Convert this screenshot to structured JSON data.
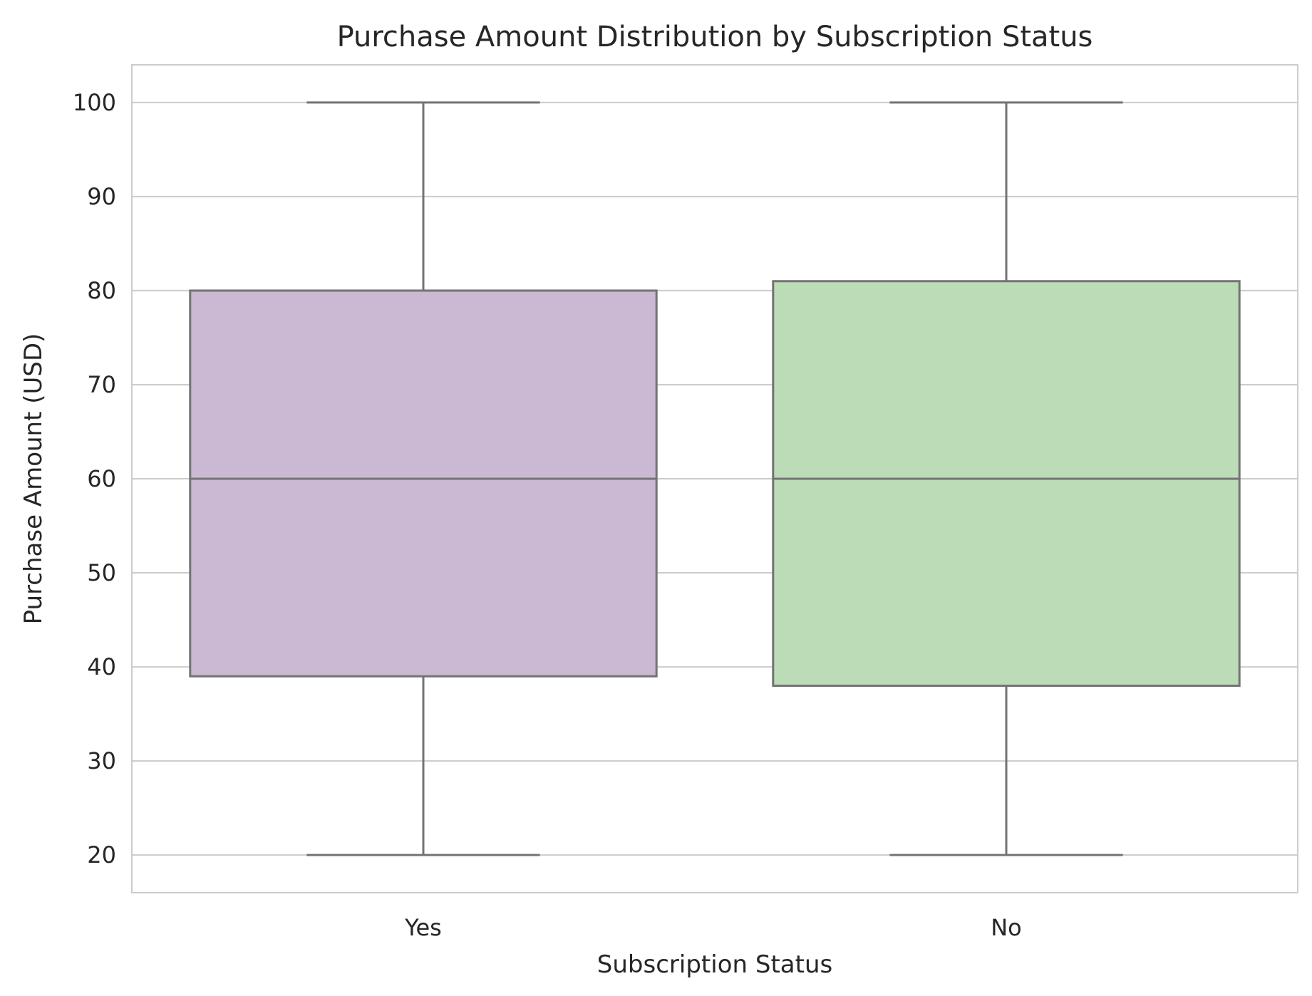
{
  "chart_data": {
    "type": "box",
    "title": "Purchase Amount Distribution by Subscription Status",
    "xlabel": "Subscription Status",
    "ylabel": "Purchase Amount (USD)",
    "categories": [
      "Yes",
      "No"
    ],
    "ylim": [
      16,
      104
    ],
    "yticks": [
      20,
      30,
      40,
      50,
      60,
      70,
      80,
      90,
      100
    ],
    "grid": true,
    "boxes": [
      {
        "category": "Yes",
        "whisker_low": 20,
        "q1": 39,
        "median": 60,
        "q3": 80,
        "whisker_high": 100,
        "color": "#cbb9d4"
      },
      {
        "category": "No",
        "whisker_low": 20,
        "q1": 38,
        "median": 60,
        "q3": 81,
        "whisker_high": 100,
        "color": "#bcdcb7"
      }
    ],
    "line_color": "#737373",
    "grid_color": "#cccccc"
  }
}
